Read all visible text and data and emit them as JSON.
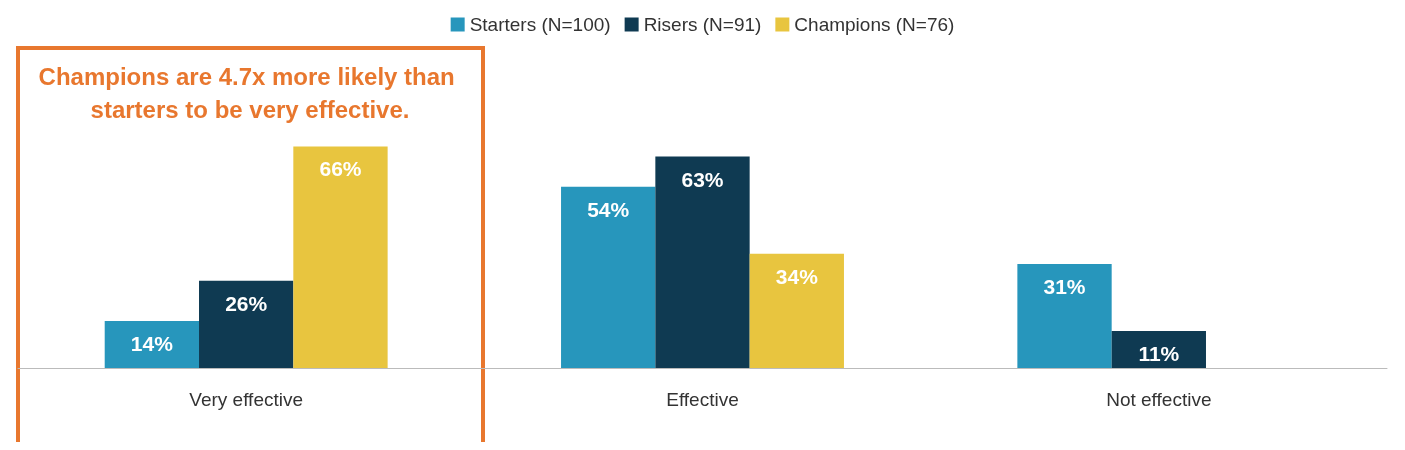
{
  "chart_data": {
    "type": "bar",
    "categories": [
      "Very effective",
      "Effective",
      "Not effective"
    ],
    "series": [
      {
        "name": "Starters (N=100)",
        "color": "#2796bc",
        "values": [
          14,
          54,
          31
        ],
        "value_labels": [
          "14%",
          "54%",
          "31%"
        ]
      },
      {
        "name": "Risers (N=91)",
        "color": "#0f3a52",
        "values": [
          26,
          63,
          11
        ],
        "value_labels": [
          "26%",
          "63%",
          "11%"
        ]
      },
      {
        "name": "Champions (N=76)",
        "color": "#e8c53f",
        "values": [
          66,
          34,
          null
        ],
        "value_labels": [
          "66%",
          "34%",
          null
        ]
      }
    ],
    "legend": "top",
    "annotations": [
      "Champions are 4.7x more likely than starters to be very effective."
    ]
  }
}
